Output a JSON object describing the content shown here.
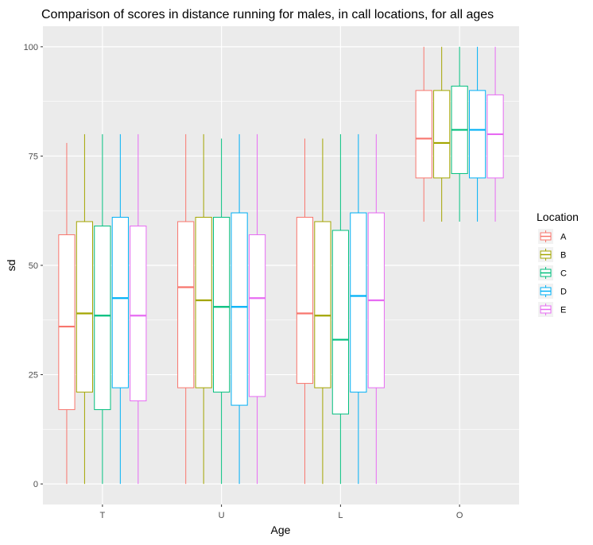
{
  "chart_data": {
    "type": "boxplot",
    "title": "Comparison of scores in distance running for males, in call locations, for all ages",
    "xlabel": "Age",
    "ylabel": "sd",
    "categories": [
      "T",
      "U",
      "L",
      "O"
    ],
    "ylim": [
      -4.7,
      104.7
    ],
    "yticks": [
      0,
      25,
      50,
      75,
      100
    ],
    "grid": true,
    "legend": {
      "title": "Location",
      "position": "right"
    },
    "series": [
      {
        "name": "A",
        "color": "#F8766D",
        "boxes": [
          {
            "min": 0,
            "q1": 17,
            "median": 36,
            "q3": 57,
            "max": 78
          },
          {
            "min": 0,
            "q1": 22,
            "median": 45,
            "q3": 60,
            "max": 80
          },
          {
            "min": 0,
            "q1": 23,
            "median": 39,
            "q3": 61,
            "max": 79
          },
          {
            "min": 60,
            "q1": 70,
            "median": 79,
            "q3": 90,
            "max": 100
          }
        ]
      },
      {
        "name": "B",
        "color": "#A3A500",
        "boxes": [
          {
            "min": 0,
            "q1": 21,
            "median": 39,
            "q3": 60,
            "max": 80
          },
          {
            "min": 0,
            "q1": 22,
            "median": 42,
            "q3": 61,
            "max": 80
          },
          {
            "min": 0,
            "q1": 22,
            "median": 38.5,
            "q3": 60,
            "max": 79
          },
          {
            "min": 60,
            "q1": 70,
            "median": 78,
            "q3": 90,
            "max": 100
          }
        ]
      },
      {
        "name": "C",
        "color": "#00BF7D",
        "boxes": [
          {
            "min": 0,
            "q1": 17,
            "median": 38.5,
            "q3": 59,
            "max": 80
          },
          {
            "min": 0,
            "q1": 21,
            "median": 40.5,
            "q3": 61,
            "max": 79
          },
          {
            "min": 0,
            "q1": 16,
            "median": 33,
            "q3": 58,
            "max": 80
          },
          {
            "min": 60,
            "q1": 71,
            "median": 81,
            "q3": 91,
            "max": 100
          }
        ]
      },
      {
        "name": "D",
        "color": "#00B0F6",
        "boxes": [
          {
            "min": 0,
            "q1": 22,
            "median": 42.5,
            "q3": 61,
            "max": 80
          },
          {
            "min": 0,
            "q1": 18,
            "median": 40.5,
            "q3": 62,
            "max": 80
          },
          {
            "min": 0,
            "q1": 21,
            "median": 43,
            "q3": 62,
            "max": 80
          },
          {
            "min": 60,
            "q1": 70,
            "median": 81,
            "q3": 90,
            "max": 100
          }
        ]
      },
      {
        "name": "E",
        "color": "#E76BF3",
        "boxes": [
          {
            "min": 0,
            "q1": 19,
            "median": 38.5,
            "q3": 59,
            "max": 80
          },
          {
            "min": 0,
            "q1": 20,
            "median": 42.5,
            "q3": 57,
            "max": 80
          },
          {
            "min": 0,
            "q1": 22,
            "median": 42,
            "q3": 62,
            "max": 80
          },
          {
            "min": 60,
            "q1": 70,
            "median": 80,
            "q3": 89,
            "max": 100
          }
        ]
      }
    ]
  }
}
